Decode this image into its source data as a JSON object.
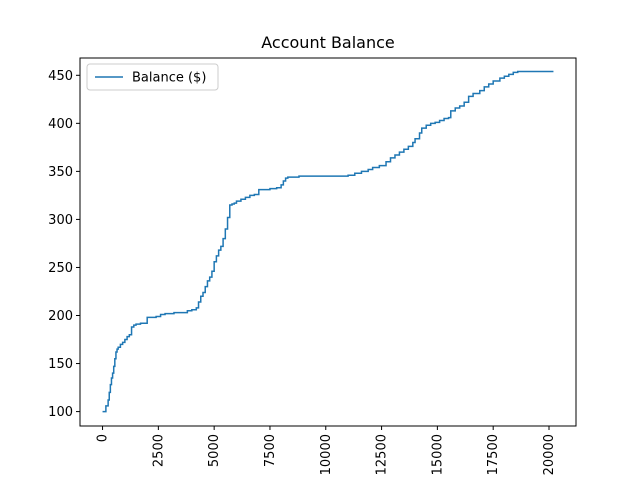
{
  "chart_data": {
    "type": "line",
    "title": "Account Balance",
    "xlabel": "",
    "ylabel": "",
    "xlim": [
      -1010,
      21210
    ],
    "ylim": [
      85,
      468
    ],
    "xticks": [
      0,
      2500,
      5000,
      7500,
      10000,
      12500,
      15000,
      17500,
      20000
    ],
    "xtick_labels": [
      "0",
      "2500",
      "5000",
      "7500",
      "10000",
      "12500",
      "15000",
      "17500",
      "20000"
    ],
    "yticks": [
      100,
      150,
      200,
      250,
      300,
      350,
      400,
      450
    ],
    "ytick_labels": [
      "100",
      "150",
      "200",
      "250",
      "300",
      "350",
      "400",
      "450"
    ],
    "xtick_rotation": 90,
    "grid": false,
    "legend": {
      "position": "top-left"
    },
    "series": [
      {
        "name": "Balance ($)",
        "color": "#1f77b4",
        "step": true,
        "x": [
          0,
          150,
          250,
          300,
          350,
          400,
          450,
          500,
          550,
          600,
          650,
          700,
          800,
          900,
          1000,
          1100,
          1200,
          1300,
          1400,
          1500,
          1700,
          2000,
          2400,
          2600,
          2800,
          3000,
          3200,
          3500,
          3800,
          4000,
          4200,
          4300,
          4400,
          4500,
          4600,
          4700,
          4800,
          4900,
          5000,
          5100,
          5200,
          5300,
          5400,
          5500,
          5600,
          5700,
          5800,
          5900,
          6000,
          6200,
          6400,
          6600,
          6800,
          7000,
          7200,
          7500,
          7800,
          8000,
          8100,
          8200,
          8300,
          8500,
          8800,
          9500,
          10000,
          11000,
          11300,
          11600,
          11900,
          12100,
          12400,
          12700,
          12900,
          13100,
          13300,
          13500,
          13700,
          13900,
          14000,
          14200,
          14300,
          14500,
          14700,
          14900,
          15100,
          15300,
          15500,
          15600,
          15800,
          16000,
          16200,
          16400,
          16600,
          16900,
          17100,
          17300,
          17500,
          17800,
          18000,
          18200,
          18400,
          18600,
          19000,
          20200
        ],
        "values": [
          100,
          106,
          112,
          120,
          128,
          135,
          140,
          147,
          155,
          162,
          165,
          167,
          170,
          172,
          175,
          178,
          180,
          188,
          190,
          191,
          192,
          198,
          199,
          201,
          202,
          202,
          203,
          203,
          205,
          206,
          208,
          214,
          220,
          224,
          230,
          236,
          240,
          246,
          256,
          262,
          268,
          272,
          280,
          290,
          302,
          315,
          316,
          317,
          319,
          321,
          323,
          325,
          326,
          331,
          331,
          332,
          333,
          336,
          340,
          343,
          344,
          344,
          345,
          345,
          345,
          346,
          348,
          350,
          352,
          354,
          356,
          360,
          364,
          367,
          370,
          373,
          376,
          380,
          384,
          390,
          395,
          398,
          400,
          401,
          403,
          405,
          406,
          413,
          416,
          418,
          422,
          428,
          431,
          434,
          438,
          441,
          444,
          447,
          449,
          451,
          453,
          454,
          454,
          454
        ]
      }
    ]
  }
}
